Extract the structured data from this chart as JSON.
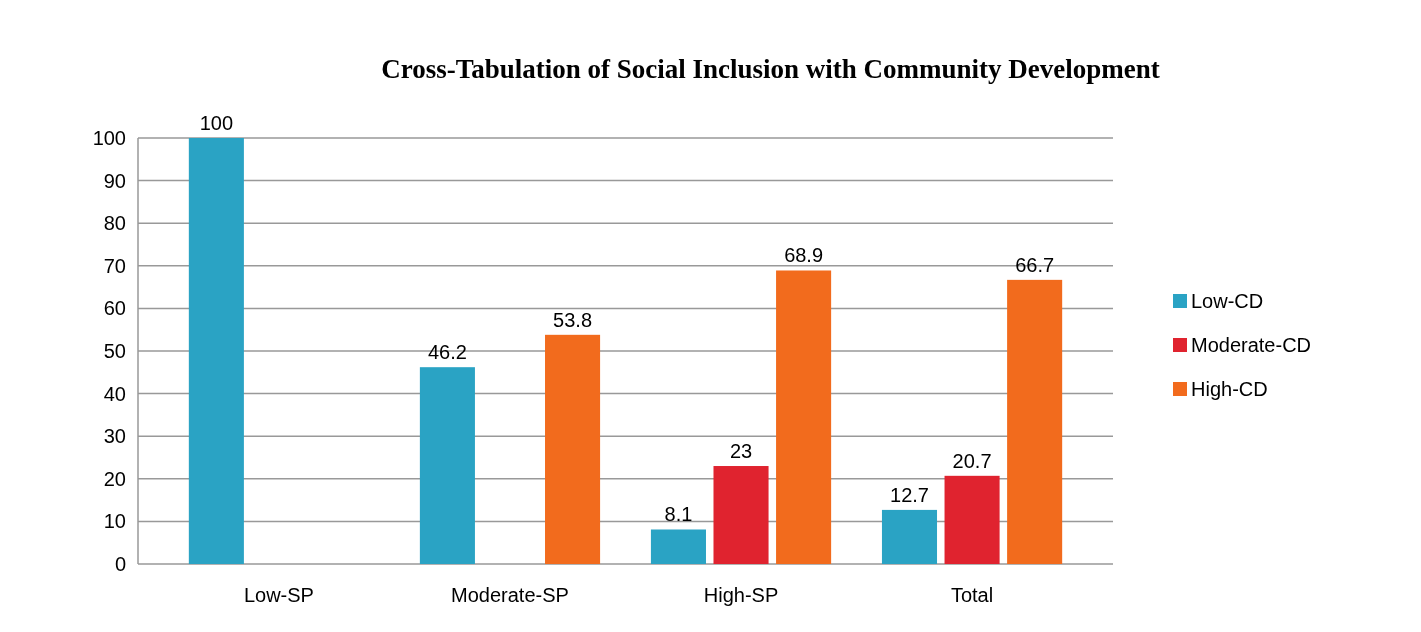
{
  "chart_data": {
    "type": "bar",
    "title": "Cross-Tabulation of Social Inclusion with Community Development",
    "categories": [
      "Low-SP",
      "Moderate-SP",
      "High-SP",
      "Total"
    ],
    "series": [
      {
        "name": "Low-CD",
        "color": "#2aa3c4",
        "values": [
          100,
          46.2,
          8.1,
          12.7
        ]
      },
      {
        "name": "Moderate-CD",
        "color": "#e0232f",
        "values": [
          null,
          null,
          23,
          20.7
        ]
      },
      {
        "name": "High-CD",
        "color": "#f26b1d",
        "values": [
          null,
          53.8,
          68.9,
          66.7
        ]
      }
    ],
    "ylim": [
      0,
      100
    ],
    "yticks": [
      0,
      10,
      20,
      30,
      40,
      50,
      60,
      70,
      80,
      90,
      100
    ],
    "grid": "y",
    "legend": "right",
    "data_labels": true
  }
}
